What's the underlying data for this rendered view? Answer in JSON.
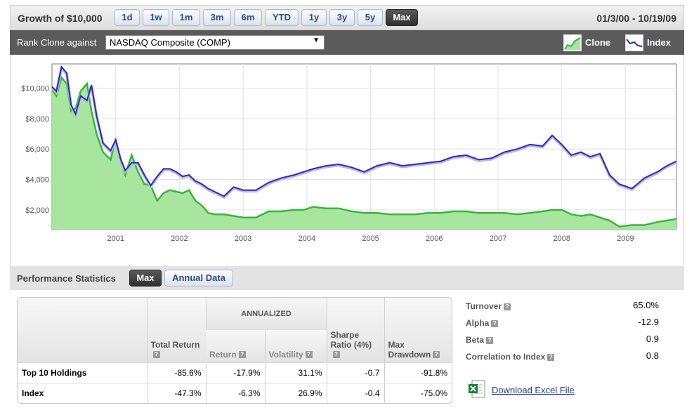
{
  "toolbar": {
    "title": "Growth of $10,000",
    "ranges": [
      "1d",
      "1w",
      "1m",
      "3m",
      "6m",
      "YTD",
      "1y",
      "3y",
      "5y",
      "Max"
    ],
    "active_range": "Max",
    "date_range": "01/3/00 - 10/19/09"
  },
  "rank": {
    "label": "Rank Clone against",
    "selected": "NASDAQ Composite (COMP)"
  },
  "legend": {
    "clone": "Clone",
    "index": "Index",
    "clone_color": "#3cb43c",
    "clone_fill": "#a8e6a0",
    "index_color": "#2b2bb8"
  },
  "chart_data": {
    "type": "area",
    "title": "",
    "xlabel": "",
    "ylabel": "",
    "x_ticks": [
      "2001",
      "2002",
      "2003",
      "2004",
      "2005",
      "2006",
      "2007",
      "2008",
      "2009"
    ],
    "y_ticks": [
      "$2,000",
      "$4,000",
      "$6,000",
      "$8,000",
      "$10,000"
    ],
    "xlim": [
      2000.0,
      2009.8
    ],
    "ylim": [
      700,
      11600
    ],
    "grid": true,
    "series": [
      {
        "name": "Clone",
        "x": [
          2000.0,
          2000.07,
          2000.15,
          2000.23,
          2000.3,
          2000.37,
          2000.45,
          2000.55,
          2000.62,
          2000.7,
          2000.8,
          2000.92,
          2001.0,
          2001.08,
          2001.15,
          2001.25,
          2001.35,
          2001.45,
          2001.55,
          2001.65,
          2001.75,
          2001.85,
          2001.95,
          2002.05,
          2002.15,
          2002.25,
          2002.35,
          2002.45,
          2002.55,
          2002.7,
          2002.85,
          2003.0,
          2003.2,
          2003.4,
          2003.6,
          2003.8,
          2003.95,
          2004.1,
          2004.3,
          2004.5,
          2004.7,
          2004.9,
          2005.1,
          2005.3,
          2005.5,
          2005.7,
          2005.9,
          2006.1,
          2006.3,
          2006.5,
          2006.7,
          2006.9,
          2007.1,
          2007.3,
          2007.5,
          2007.7,
          2007.85,
          2008.0,
          2008.15,
          2008.3,
          2008.45,
          2008.6,
          2008.75,
          2008.9,
          2009.1,
          2009.3,
          2009.5,
          2009.65,
          2009.8
        ],
        "values": [
          9900,
          9500,
          10700,
          10300,
          8500,
          8700,
          9800,
          10300,
          8500,
          7000,
          5800,
          5300,
          6700,
          5200,
          4300,
          5600,
          4500,
          3700,
          3600,
          2600,
          3100,
          3300,
          3200,
          3100,
          3300,
          2600,
          2300,
          1800,
          1700,
          1700,
          1600,
          1500,
          1500,
          1900,
          1900,
          2000,
          2000,
          2200,
          2100,
          2100,
          1900,
          1800,
          1800,
          1700,
          1700,
          1700,
          1800,
          1800,
          1900,
          1900,
          1800,
          1800,
          1800,
          1700,
          1800,
          1900,
          2000,
          2000,
          1700,
          1600,
          1700,
          1500,
          1300,
          900,
          1000,
          1000,
          1200,
          1300,
          1400
        ]
      },
      {
        "name": "Index",
        "x": [
          2000.0,
          2000.07,
          2000.15,
          2000.23,
          2000.3,
          2000.37,
          2000.45,
          2000.55,
          2000.62,
          2000.7,
          2000.8,
          2000.92,
          2001.0,
          2001.08,
          2001.15,
          2001.25,
          2001.35,
          2001.45,
          2001.55,
          2001.65,
          2001.75,
          2001.85,
          2001.95,
          2002.05,
          2002.15,
          2002.25,
          2002.35,
          2002.45,
          2002.55,
          2002.7,
          2002.85,
          2003.0,
          2003.2,
          2003.4,
          2003.6,
          2003.8,
          2003.95,
          2004.1,
          2004.3,
          2004.5,
          2004.7,
          2004.9,
          2005.1,
          2005.3,
          2005.5,
          2005.7,
          2005.9,
          2006.1,
          2006.3,
          2006.5,
          2006.7,
          2006.9,
          2007.1,
          2007.3,
          2007.5,
          2007.7,
          2007.85,
          2008.0,
          2008.15,
          2008.3,
          2008.45,
          2008.6,
          2008.75,
          2008.9,
          2009.1,
          2009.3,
          2009.5,
          2009.65,
          2009.8
        ],
        "values": [
          10100,
          9800,
          11400,
          11000,
          8900,
          8300,
          9500,
          9200,
          10200,
          8200,
          6400,
          5900,
          6600,
          5300,
          4600,
          5100,
          5100,
          4300,
          3600,
          4200,
          4700,
          4700,
          4500,
          4200,
          4300,
          3900,
          3700,
          3400,
          3200,
          2900,
          3500,
          3300,
          3300,
          3800,
          4100,
          4300,
          4500,
          4700,
          4900,
          5000,
          4800,
          4500,
          4900,
          5100,
          4900,
          5000,
          5100,
          5200,
          5500,
          5600,
          5300,
          5400,
          5800,
          6000,
          6300,
          6200,
          6900,
          6300,
          5600,
          5800,
          5500,
          5700,
          4300,
          3700,
          3400,
          4100,
          4500,
          4900,
          5200
        ]
      }
    ]
  },
  "stats": {
    "title": "Performance Statistics",
    "tabs": [
      "Max",
      "Annual Data"
    ],
    "active_tab": "Max",
    "headers": {
      "total_return": "Total Return",
      "annualized": "ANNUALIZED",
      "return": "Return",
      "volatility": "Volatility",
      "sharpe": "Sharpe Ratio (4%)",
      "drawdown": "Max Drawdown"
    },
    "rows": [
      {
        "name": "Top 10 Holdings",
        "total_return": "-85.6%",
        "return": "-17.9%",
        "volatility": "31.1%",
        "sharpe": "-0.7",
        "drawdown": "-91.8%"
      },
      {
        "name": "Index",
        "total_return": "-47.3%",
        "return": "-6.3%",
        "volatility": "26.9%",
        "sharpe": "-0.4",
        "drawdown": "-75.0%"
      }
    ],
    "metrics": [
      {
        "label": "Turnover",
        "value": "65.0%"
      },
      {
        "label": "Alpha",
        "value": "-12.9"
      },
      {
        "label": "Beta",
        "value": "0.9"
      },
      {
        "label": "Correlation to Index",
        "value": "0.8"
      }
    ],
    "download_label": "Download Excel File"
  }
}
